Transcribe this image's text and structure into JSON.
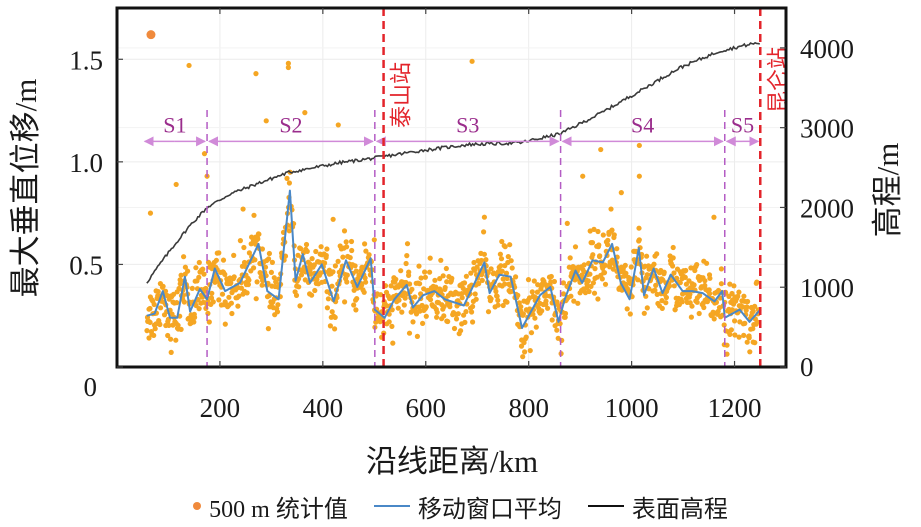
{
  "chart_data": {
    "type": "scatter",
    "title": "",
    "xlabel": "沿线距离/km",
    "ylabel_left": "最大垂直位移/m",
    "ylabel_right": "高程/m",
    "xlim": [
      0,
      1300
    ],
    "ylim_left": [
      0,
      1.75
    ],
    "ylim_right": [
      0,
      4500
    ],
    "x_ticks": [
      200,
      400,
      600,
      800,
      1000,
      1200
    ],
    "x_tick_labels": [
      "200",
      "400",
      "600",
      "800",
      "1000",
      "1200"
    ],
    "y_left_ticks": [
      0,
      0.5,
      1.0,
      1.5
    ],
    "y_left_tick_labels": [
      "0",
      "0.5",
      "1.0",
      "1.5"
    ],
    "y_right_ticks": [
      0,
      1000,
      2000,
      3000,
      4000
    ],
    "y_right_tick_labels": [
      "0",
      "1000",
      "2000",
      "3000",
      "4000"
    ],
    "grid": true,
    "legend_position": "bottom",
    "colors": {
      "scatter": "#F5A623",
      "scatter_legend": "#F08A3C",
      "moving_average": "#4A88C7",
      "elevation": "#3a3a3a",
      "segment_boundary": "#B45CC4",
      "segment_arrow": "#D08AD8",
      "segment_label": "#9A2C8C",
      "station": "#E3242B"
    },
    "legend": [
      {
        "name": "500 m 统计值",
        "marker": "dot"
      },
      {
        "name": "移动窗口平均",
        "marker": "line"
      },
      {
        "name": "表面高程",
        "marker": "line"
      }
    ],
    "series": [
      {
        "name": "移动窗口平均",
        "axis": "left",
        "x": [
          58,
          73,
          89,
          103,
          117,
          132,
          142,
          161,
          175,
          190,
          210,
          239,
          275,
          292,
          314,
          336,
          347,
          361,
          375,
          398,
          421,
          445,
          467,
          493,
          501,
          520,
          539,
          563,
          575,
          595,
          617,
          637,
          674,
          714,
          724,
          743,
          765,
          787,
          822,
          842,
          858,
          870,
          891,
          904,
          924,
          944,
          962,
          979,
          996,
          1014,
          1024,
          1043,
          1060,
          1076,
          1099,
          1118,
          1138,
          1161,
          1176,
          1181,
          1210,
          1229,
          1250
        ],
        "values": [
          0.25,
          0.26,
          0.37,
          0.24,
          0.24,
          0.44,
          0.27,
          0.38,
          0.33,
          0.48,
          0.37,
          0.41,
          0.6,
          0.37,
          0.33,
          0.86,
          0.42,
          0.55,
          0.41,
          0.5,
          0.32,
          0.52,
          0.39,
          0.53,
          0.28,
          0.24,
          0.33,
          0.4,
          0.29,
          0.35,
          0.37,
          0.33,
          0.3,
          0.51,
          0.36,
          0.45,
          0.44,
          0.19,
          0.35,
          0.39,
          0.22,
          0.33,
          0.47,
          0.41,
          0.52,
          0.51,
          0.6,
          0.41,
          0.33,
          0.58,
          0.35,
          0.48,
          0.36,
          0.45,
          0.37,
          0.37,
          0.36,
          0.32,
          0.37,
          0.24,
          0.28,
          0.22,
          0.28
        ]
      },
      {
        "name": "表面高程",
        "axis": "right",
        "x": [
          58,
          80,
          103,
          140,
          175,
          220,
          278,
          334,
          433,
          501,
          588,
          685,
          783,
          862,
          938,
          1016,
          1093,
          1171,
          1233,
          1250
        ],
        "values": [
          1060,
          1260,
          1460,
          1760,
          2000,
          2170,
          2310,
          2440,
          2560,
          2620,
          2710,
          2790,
          2810,
          2925,
          3175,
          3460,
          3750,
          3960,
          4050,
          4060
        ]
      },
      {
        "name": "500 m 统计值",
        "axis": "left",
        "note": "dense scatter around moving average; notable outliers listed",
        "spread": 0.07,
        "count": 1300,
        "outliers": [
          [
            66,
            1.62
          ],
          [
            140,
            1.47
          ],
          [
            270,
            1.43
          ],
          [
            333,
            1.48
          ],
          [
            333,
            1.46
          ],
          [
            365,
            1.24
          ],
          [
            430,
            1.18
          ],
          [
            290,
            1.2
          ],
          [
            690,
            1.49
          ],
          [
            170,
            1.04
          ],
          [
            115,
            0.89
          ],
          [
            65,
            0.75
          ],
          [
            175,
            0.93
          ],
          [
            245,
            0.77
          ],
          [
            420,
            0.72
          ],
          [
            500,
            0.62
          ],
          [
            940,
            1.06
          ],
          [
            1015,
            1.08
          ],
          [
            905,
            0.93
          ],
          [
            960,
            0.77
          ],
          [
            1015,
            0.93
          ],
          [
            1160,
            0.73
          ],
          [
            640,
            0.48
          ],
          [
            745,
            0.55
          ],
          [
            803,
            0.08
          ],
          [
            875,
            0.7
          ],
          [
            980,
            0.85
          ]
        ]
      }
    ],
    "segments": [
      {
        "label": "S1",
        "start": 50,
        "end": 175
      },
      {
        "label": "S2",
        "start": 175,
        "end": 501
      },
      {
        "label": "S3",
        "start": 501,
        "end": 862
      },
      {
        "label": "S4",
        "start": 862,
        "end": 1181
      },
      {
        "label": "S5",
        "start": 1181,
        "end": 1250
      }
    ],
    "segment_arrow_level": 1.1,
    "stations": [
      {
        "label": "泰山站",
        "x": 518
      },
      {
        "label": "昆仑站",
        "x": 1250
      }
    ]
  }
}
